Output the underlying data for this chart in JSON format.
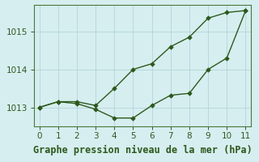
{
  "title": "Graphe pression niveau de la mer (hPa)",
  "bg_color": "#d6eef0",
  "grid_color": "#b8d8dc",
  "line_color": "#2d5a1b",
  "spine_color": "#4a7a3a",
  "xlim": [
    -0.3,
    11.3
  ],
  "ylim": [
    1012.5,
    1015.7
  ],
  "xticks": [
    0,
    1,
    2,
    3,
    4,
    5,
    6,
    7,
    8,
    9,
    10,
    11
  ],
  "yticks": [
    1013,
    1014,
    1015
  ],
  "line1_x": [
    0,
    1,
    2,
    3,
    4,
    5,
    6,
    7,
    8,
    9,
    10,
    11
  ],
  "line1_y": [
    1013.0,
    1013.15,
    1013.15,
    1013.05,
    1013.5,
    1014.0,
    1014.15,
    1014.6,
    1014.85,
    1015.35,
    1015.5,
    1015.55
  ],
  "line2_x": [
    0,
    1,
    2,
    3,
    4,
    5,
    6,
    7,
    8,
    9,
    10,
    11
  ],
  "line2_y": [
    1013.0,
    1013.15,
    1013.1,
    1012.95,
    1012.72,
    1012.72,
    1013.05,
    1013.32,
    1013.37,
    1014.0,
    1014.3,
    1015.55
  ],
  "title_fontsize": 8.5,
  "tick_fontsize": 7.5,
  "marker": "D",
  "markersize": 2.8,
  "linewidth": 1.0
}
